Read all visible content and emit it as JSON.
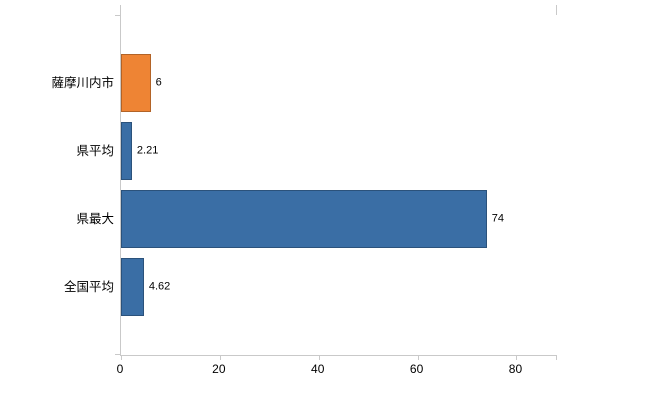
{
  "chart_data": {
    "type": "bar",
    "orientation": "horizontal",
    "title": "",
    "xlabel": "",
    "ylabel": "",
    "categories": [
      "薩摩川内市",
      "県平均",
      "県最大",
      "全国平均"
    ],
    "values": [
      6,
      2.21,
      74,
      4.62
    ],
    "value_labels": [
      "6",
      "2.21",
      "74",
      "4.62"
    ],
    "series_colors": [
      "#ee8434",
      "#3a6ea5",
      "#3a6ea5",
      "#3a6ea5"
    ],
    "x_ticks": [
      0,
      20,
      40,
      60,
      80
    ],
    "xlim": [
      0,
      88
    ],
    "grid": false,
    "legend": "none",
    "value_label_position": "outside-right"
  },
  "style": {
    "axis_color": "#c9c9c9",
    "text_color": "#000000",
    "background": "#ffffff"
  }
}
